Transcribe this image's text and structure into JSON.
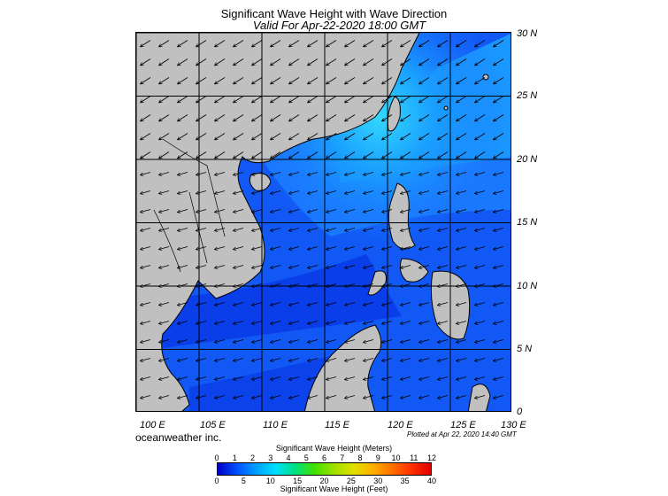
{
  "title": "Significant Wave Height with Wave Direction",
  "subtitle": "Valid For Apr-22-2020 18:00 GMT",
  "lat_labels": [
    "30 N",
    "25 N",
    "20 N",
    "15 N",
    "10 N",
    "5 N",
    "0"
  ],
  "lon_labels": [
    "100 E",
    "105 E",
    "110 E",
    "115 E",
    "120 E",
    "125 E",
    "130 E"
  ],
  "credit": "oceanweather inc.",
  "plotted": "Plotted at Apr 22, 2020 14:40 GMT",
  "colorbar": {
    "top_title": "Significant Wave Height (Meters)",
    "bottom_title": "Significant Wave Height (Feet)",
    "meters_ticks": [
      "0",
      "1",
      "2",
      "3",
      "4",
      "5",
      "6",
      "7",
      "8",
      "9",
      "10",
      "11",
      "12"
    ],
    "feet_ticks": [
      "0",
      "5",
      "10",
      "15",
      "20",
      "25",
      "30",
      "35",
      "40"
    ]
  },
  "colors": {
    "land": "#c0c0c0",
    "sea_low": "#0a3cf0",
    "sea_mid": "#1464ff",
    "sea_high": "#1aa8ff",
    "sea_peak": "#30e0ff"
  },
  "map_extent": {
    "lon": [
      100,
      130
    ],
    "lat": [
      0,
      30
    ]
  }
}
